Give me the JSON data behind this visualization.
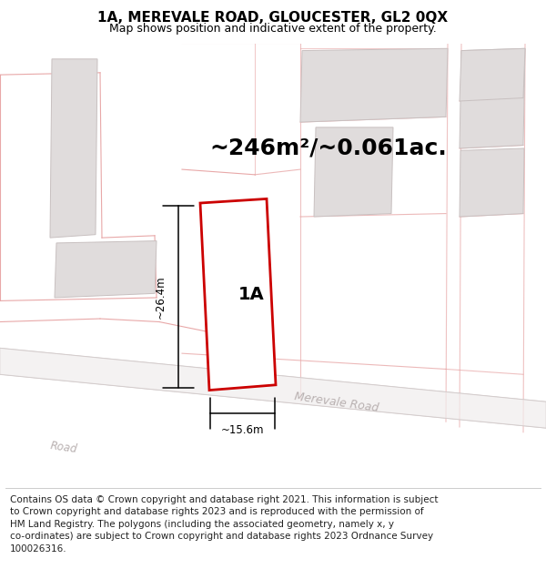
{
  "title": "1A, MEREVALE ROAD, GLOUCESTER, GL2 0QX",
  "subtitle": "Map shows position and indicative extent of the property.",
  "area_label": "~246m²/~0.061ac.",
  "property_label": "1A",
  "dim_width": "~15.6m",
  "dim_height": "~26.4m",
  "road_label": "Merevale Road",
  "road_label2": "Road",
  "footer": "Contains OS data © Crown copyright and database right 2021. This information is subject to Crown copyright and database rights 2023 and is reproduced with the permission of\nHM Land Registry. The polygons (including the associated geometry, namely x, y\nco-ordinates) are subject to Crown copyright and database rights 2023 Ordnance Survey\n100026316.",
  "map_bg": "#f9f7f7",
  "property_edge": "#cc0000",
  "pink_line": "#e8a8a8",
  "pink_fill": "#f5ecec",
  "gray_fill": "#e0dcdc",
  "gray_edge": "#c8c0c0",
  "road_gray": "#d0c8c8",
  "title_fontsize": 11,
  "subtitle_fontsize": 9,
  "area_fontsize": 18,
  "label_fontsize": 14,
  "footer_fontsize": 7.5
}
